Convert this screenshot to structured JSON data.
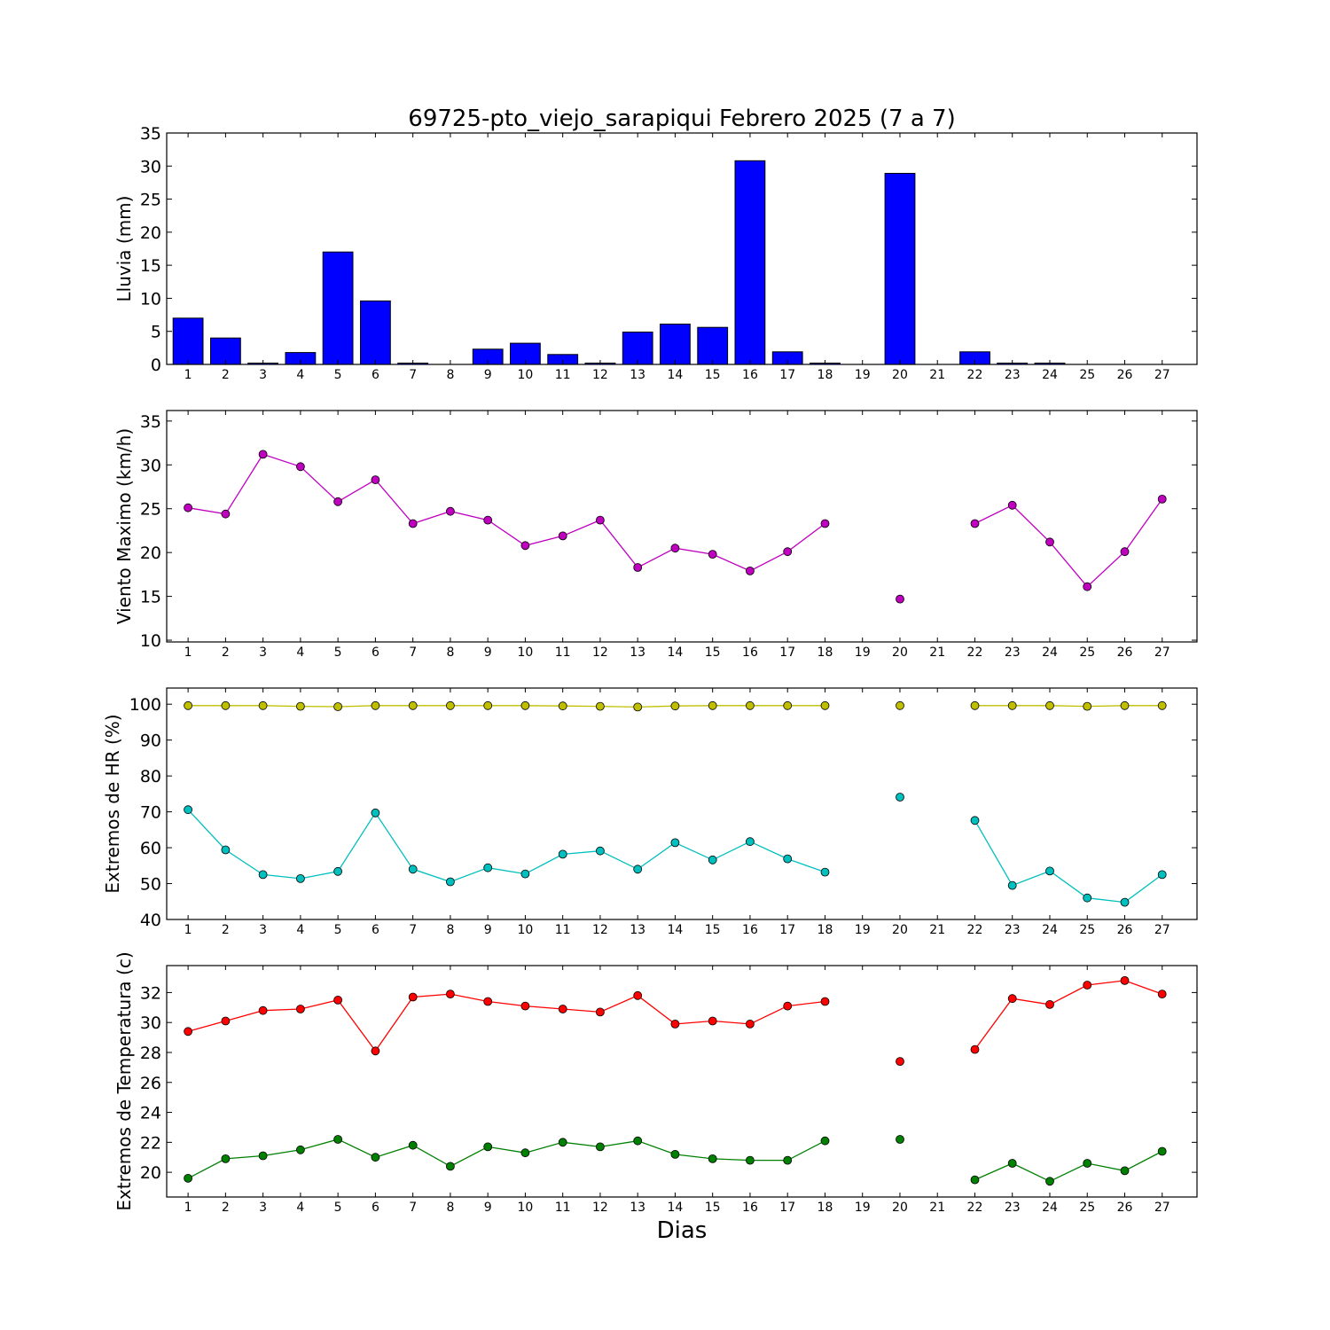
{
  "chart_data": [
    {
      "type": "bar",
      "title": "69725-pto_viejo_sarapiqui Febrero 2025  (7 a 7)",
      "ylabel": "Lluvia (mm)",
      "ylim": [
        0,
        35
      ],
      "yticks": [
        0,
        5,
        10,
        15,
        20,
        25,
        30,
        35
      ],
      "categories": [
        "1",
        "2",
        "3",
        "4",
        "5",
        "6",
        "7",
        "8",
        "9",
        "10",
        "11",
        "12",
        "13",
        "14",
        "15",
        "16",
        "17",
        "18",
        "19",
        "20",
        "21",
        "22",
        "23",
        "24",
        "25",
        "26",
        "27"
      ],
      "series": [
        {
          "color": "#0000ff",
          "values": [
            7.0,
            4.0,
            0.2,
            1.8,
            17.0,
            9.6,
            0.2,
            0.0,
            2.3,
            3.2,
            1.5,
            0.2,
            4.9,
            6.1,
            5.6,
            30.8,
            1.9,
            0.2,
            null,
            28.9,
            0.0,
            1.9,
            0.2,
            0.2,
            0.0,
            0.0,
            0.0
          ]
        }
      ]
    },
    {
      "type": "line",
      "ylabel": "Viento Maximo (km/h)",
      "ylim": [
        9.8,
        36.2
      ],
      "yticks": [
        10,
        15,
        20,
        25,
        30,
        35
      ],
      "categories": [
        "1",
        "2",
        "3",
        "4",
        "5",
        "6",
        "7",
        "8",
        "9",
        "10",
        "11",
        "12",
        "13",
        "14",
        "15",
        "16",
        "17",
        "18",
        "19",
        "20",
        "21",
        "22",
        "23",
        "24",
        "25",
        "26",
        "27"
      ],
      "series": [
        {
          "color": "#bf00bf",
          "values": [
            25.1,
            24.4,
            31.2,
            29.8,
            25.8,
            28.3,
            23.3,
            24.7,
            23.7,
            20.8,
            21.9,
            23.7,
            18.3,
            20.5,
            19.8,
            17.9,
            20.1,
            23.3,
            null,
            14.7,
            null,
            23.3,
            25.4,
            21.2,
            16.1,
            20.1,
            26.1
          ]
        }
      ]
    },
    {
      "type": "line",
      "ylabel": "Extremos de HR (%)",
      "ylim": [
        40,
        104.5
      ],
      "yticks": [
        40,
        50,
        60,
        70,
        80,
        90,
        100
      ],
      "categories": [
        "1",
        "2",
        "3",
        "4",
        "5",
        "6",
        "7",
        "8",
        "9",
        "10",
        "11",
        "12",
        "13",
        "14",
        "15",
        "16",
        "17",
        "18",
        "19",
        "20",
        "21",
        "22",
        "23",
        "24",
        "25",
        "26",
        "27"
      ],
      "series": [
        {
          "color": "#bfbf00",
          "values": [
            99.6,
            99.6,
            99.6,
            99.4,
            99.3,
            99.6,
            99.6,
            99.6,
            99.6,
            99.6,
            99.5,
            99.4,
            99.2,
            99.5,
            99.6,
            99.6,
            99.6,
            99.6,
            null,
            99.6,
            null,
            99.6,
            99.6,
            99.6,
            99.4,
            99.6,
            99.6
          ]
        },
        {
          "color": "#00bfbf",
          "values": [
            70.6,
            59.4,
            52.5,
            51.4,
            53.4,
            69.7,
            54.0,
            50.5,
            54.4,
            52.7,
            58.2,
            59.1,
            54.0,
            61.4,
            56.6,
            61.7,
            56.9,
            53.2,
            null,
            74.1,
            null,
            67.6,
            49.5,
            53.5,
            46.0,
            44.8,
            52.5
          ]
        }
      ]
    },
    {
      "type": "line",
      "ylabel": "Extremos de Temperatura (c)",
      "ylim": [
        18.35,
        33.8
      ],
      "yticks": [
        20,
        22,
        24,
        26,
        28,
        30,
        32
      ],
      "xlabel": "Dias",
      "categories": [
        "1",
        "2",
        "3",
        "4",
        "5",
        "6",
        "7",
        "8",
        "9",
        "10",
        "11",
        "12",
        "13",
        "14",
        "15",
        "16",
        "17",
        "18",
        "19",
        "20",
        "21",
        "22",
        "23",
        "24",
        "25",
        "26",
        "27"
      ],
      "series": [
        {
          "color": "#ff0000",
          "values": [
            29.4,
            30.1,
            30.8,
            30.9,
            31.5,
            28.1,
            31.7,
            31.9,
            31.4,
            31.1,
            30.9,
            30.7,
            31.8,
            29.9,
            30.1,
            29.9,
            31.1,
            31.4,
            null,
            27.4,
            null,
            28.2,
            31.6,
            31.2,
            32.5,
            32.8,
            31.9
          ]
        },
        {
          "color": "#008000",
          "values": [
            19.6,
            20.9,
            21.1,
            21.5,
            22.2,
            21.0,
            21.8,
            20.4,
            21.7,
            21.3,
            22.0,
            21.7,
            22.1,
            21.2,
            20.9,
            20.8,
            20.8,
            22.1,
            null,
            22.2,
            null,
            19.5,
            20.6,
            19.4,
            20.6,
            20.1,
            21.4
          ]
        }
      ]
    }
  ]
}
